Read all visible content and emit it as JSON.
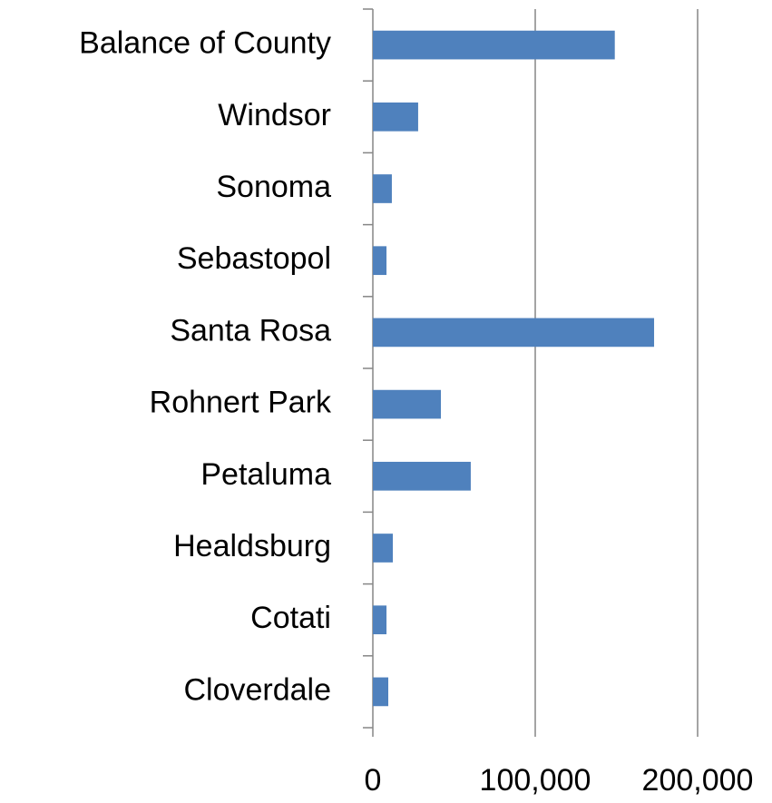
{
  "chart_data": {
    "type": "bar",
    "orientation": "horizontal",
    "categories": [
      "Cloverdale",
      "Cotati",
      "Healdsburg",
      "Petaluma",
      "Rohnert Park",
      "Santa Rosa",
      "Sebastopol",
      "Sonoma",
      "Windsor",
      "Balance of County"
    ],
    "values": [
      9500,
      8400,
      12300,
      60300,
      41900,
      173200,
      8400,
      11700,
      27900,
      149000
    ],
    "color": "#4f81bd",
    "xlim": [
      0,
      200000
    ],
    "xticks": [
      0,
      {
        "value": 100000,
        "label": "100,000"
      },
      {
        "value": 200000,
        "label": "200,000"
      }
    ],
    "grid": true
  }
}
